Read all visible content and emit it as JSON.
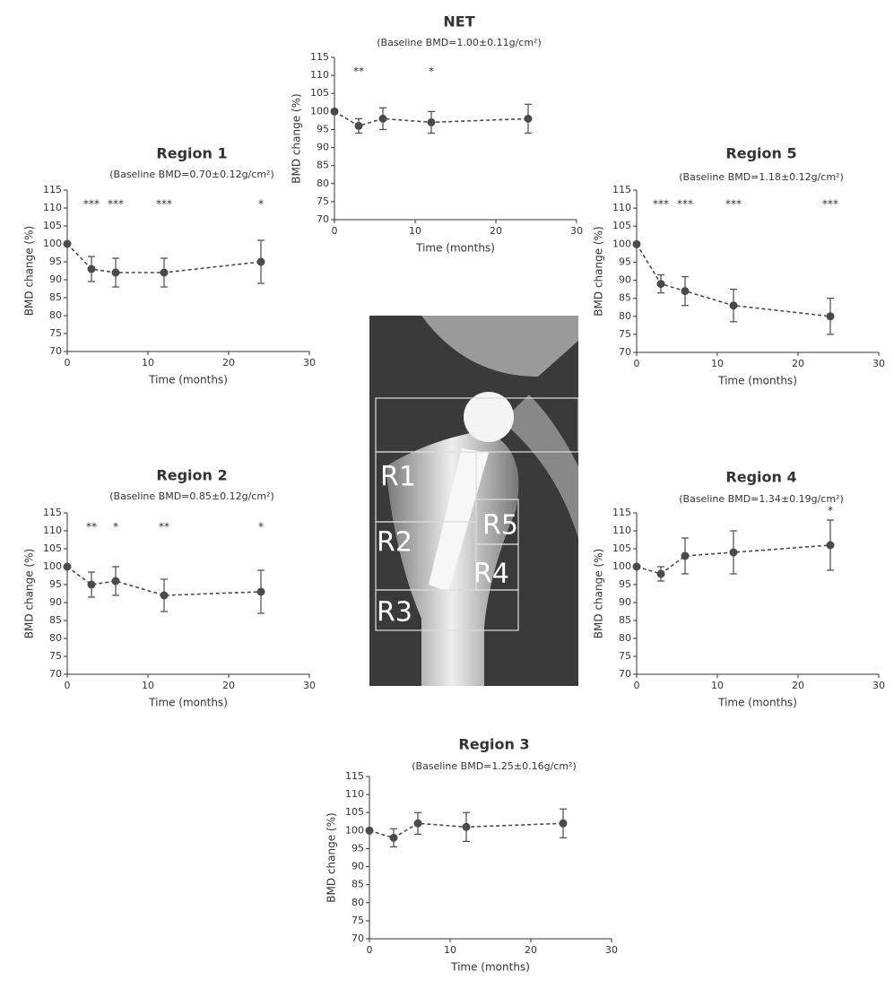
{
  "chart_data": [
    {
      "type": "line",
      "title": "NET",
      "subtitle": "(Baseline BMD=1.00±0.11g/cm²)",
      "x_label": "Time (months)",
      "y_label": "BMD change (%)",
      "x": [
        0,
        3,
        6,
        12,
        24
      ],
      "values": [
        100,
        96,
        98,
        97,
        98
      ],
      "errors": [
        0,
        2,
        3,
        3,
        4
      ],
      "annotations": [
        null,
        "**",
        null,
        "*",
        null
      ],
      "color": "#4a4a4a",
      "xlim": [
        0,
        30
      ],
      "xticks": [
        0,
        10,
        20,
        30
      ],
      "ylim": [
        70,
        115
      ],
      "yticks": [
        70,
        75,
        80,
        85,
        90,
        95,
        100,
        105,
        110,
        115
      ]
    },
    {
      "type": "line",
      "title": "Region 1",
      "subtitle": "(Baseline BMD=0.70±0.12g/cm²)",
      "x_label": "Time (months)",
      "y_label": "BMD change (%)",
      "x": [
        0,
        3,
        6,
        12,
        24
      ],
      "values": [
        100,
        93,
        92,
        92,
        95
      ],
      "errors": [
        0,
        3.5,
        4,
        4,
        6
      ],
      "annotations": [
        null,
        "***",
        "***",
        "***",
        "*"
      ],
      "color": "#4a4a4a",
      "xlim": [
        0,
        30
      ],
      "xticks": [
        0,
        10,
        20,
        30
      ],
      "ylim": [
        70,
        115
      ],
      "yticks": [
        70,
        75,
        80,
        85,
        90,
        95,
        100,
        105,
        110,
        115
      ]
    },
    {
      "type": "line",
      "title": "Region 5",
      "subtitle": "(Baseline BMD=1.18±0.12g/cm²)",
      "x_label": "Time (months)",
      "y_label": "BMD change (%)",
      "x": [
        0,
        3,
        6,
        12,
        24
      ],
      "values": [
        100,
        89,
        87,
        83,
        80
      ],
      "errors": [
        0,
        2.5,
        4,
        4.5,
        5
      ],
      "annotations": [
        null,
        "***",
        "***",
        "***",
        "***"
      ],
      "color": "#4a4a4a",
      "xlim": [
        0,
        30
      ],
      "xticks": [
        0,
        10,
        20,
        30
      ],
      "ylim": [
        70,
        115
      ],
      "yticks": [
        70,
        75,
        80,
        85,
        90,
        95,
        100,
        105,
        110,
        115
      ]
    },
    {
      "type": "line",
      "title": "Region 2",
      "subtitle": "(Baseline BMD=0.85±0.12g/cm²)",
      "x_label": "Time (months)",
      "y_label": "BMD change (%)",
      "x": [
        0,
        3,
        6,
        12,
        24
      ],
      "values": [
        100,
        95,
        96,
        92,
        93
      ],
      "errors": [
        0,
        3.5,
        4,
        4.5,
        6
      ],
      "annotations": [
        null,
        "**",
        "*",
        "**",
        "*"
      ],
      "color": "#4a4a4a",
      "xlim": [
        0,
        30
      ],
      "xticks": [
        0,
        10,
        20,
        30
      ],
      "ylim": [
        70,
        115
      ],
      "yticks": [
        70,
        75,
        80,
        85,
        90,
        95,
        100,
        105,
        110,
        115
      ]
    },
    {
      "type": "line",
      "title": "Region 4",
      "subtitle": "(Baseline BMD=1.34±0.19g/cm²)",
      "x_label": "Time (months)",
      "y_label": "BMD change (%)",
      "x": [
        0,
        3,
        6,
        12,
        24
      ],
      "values": [
        100,
        98,
        103,
        104,
        106
      ],
      "errors": [
        0,
        2,
        5,
        6,
        7
      ],
      "annotations": [
        null,
        null,
        null,
        null,
        "*"
      ],
      "color": "#4a4a4a",
      "xlim": [
        0,
        30
      ],
      "xticks": [
        0,
        10,
        20,
        30
      ],
      "ylim": [
        70,
        115
      ],
      "yticks": [
        70,
        75,
        80,
        85,
        90,
        95,
        100,
        105,
        110,
        115
      ]
    },
    {
      "type": "line",
      "title": "Region 3",
      "subtitle": "(Baseline BMD=1.25±0.16g/cm²)",
      "x_label": "Time (months)",
      "y_label": "BMD change (%)",
      "x": [
        0,
        3,
        6,
        12,
        24
      ],
      "values": [
        100,
        98,
        102,
        101,
        102
      ],
      "errors": [
        0,
        2.5,
        3,
        4,
        4
      ],
      "annotations": [
        null,
        null,
        null,
        null,
        null
      ],
      "color": "#4a4a4a",
      "xlim": [
        0,
        30
      ],
      "xticks": [
        0,
        10,
        20,
        30
      ],
      "ylim": [
        70,
        115
      ],
      "yticks": [
        70,
        75,
        80,
        85,
        90,
        95,
        100,
        105,
        110,
        115
      ]
    }
  ],
  "xray": {
    "labels": [
      "R1",
      "R2",
      "R3",
      "R4",
      "R5"
    ]
  }
}
